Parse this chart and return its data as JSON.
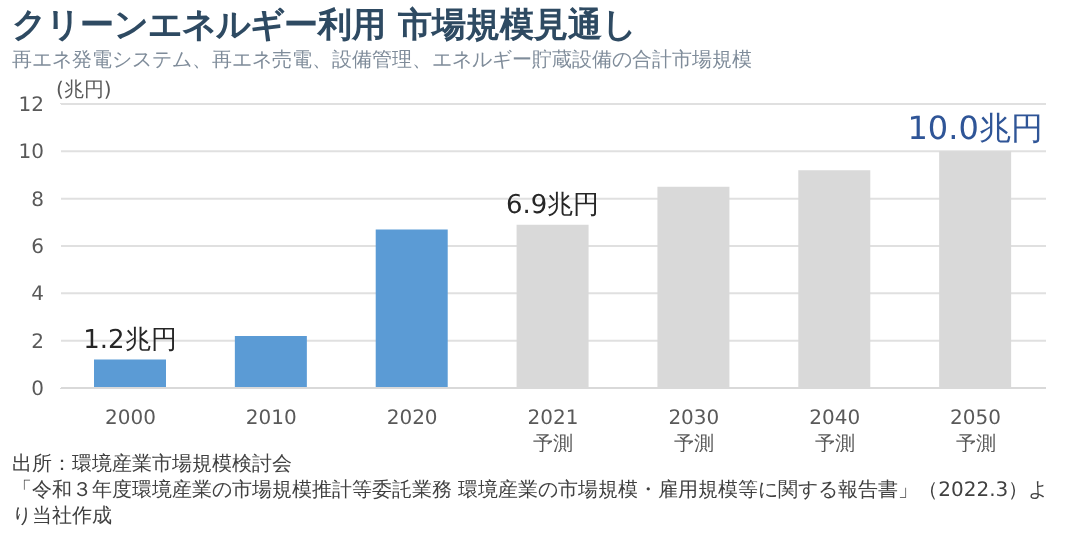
{
  "chart_data": {
    "type": "bar",
    "title": "クリーンエネルギー利用 市場規模見通し",
    "subtitle": "再エネ発電システム、再エネ売電、設備管理、エネルギー貯蔵設備の合計市場規模",
    "ylabel": "(兆円)",
    "categories": [
      "2000",
      "2010",
      "2020",
      "2021\n予測",
      "2030\n予測",
      "2040\n予測",
      "2050\n予測"
    ],
    "values": [
      1.2,
      2.2,
      6.7,
      6.9,
      8.5,
      9.2,
      10.0
    ],
    "colors": [
      "#5b9bd5",
      "#5b9bd5",
      "#5b9bd5",
      "#d9d9d9",
      "#d9d9d9",
      "#d9d9d9",
      "#d9d9d9"
    ],
    "value_labels": [
      "1.2兆円",
      null,
      null,
      "6.9兆円",
      null,
      null,
      "10.0兆円"
    ],
    "ylim": [
      0,
      12
    ],
    "yticks": [
      0,
      2,
      4,
      6,
      8,
      10,
      12
    ],
    "grid": "y",
    "legend": false,
    "annotations": [
      "出所：環境産業市場規模検討会",
      "「令和３年度環境産業の市場規模推計等委託業務 環境産業の市場規模・雇用規模等に関する報告書」（2022.3）より当社作成"
    ]
  }
}
